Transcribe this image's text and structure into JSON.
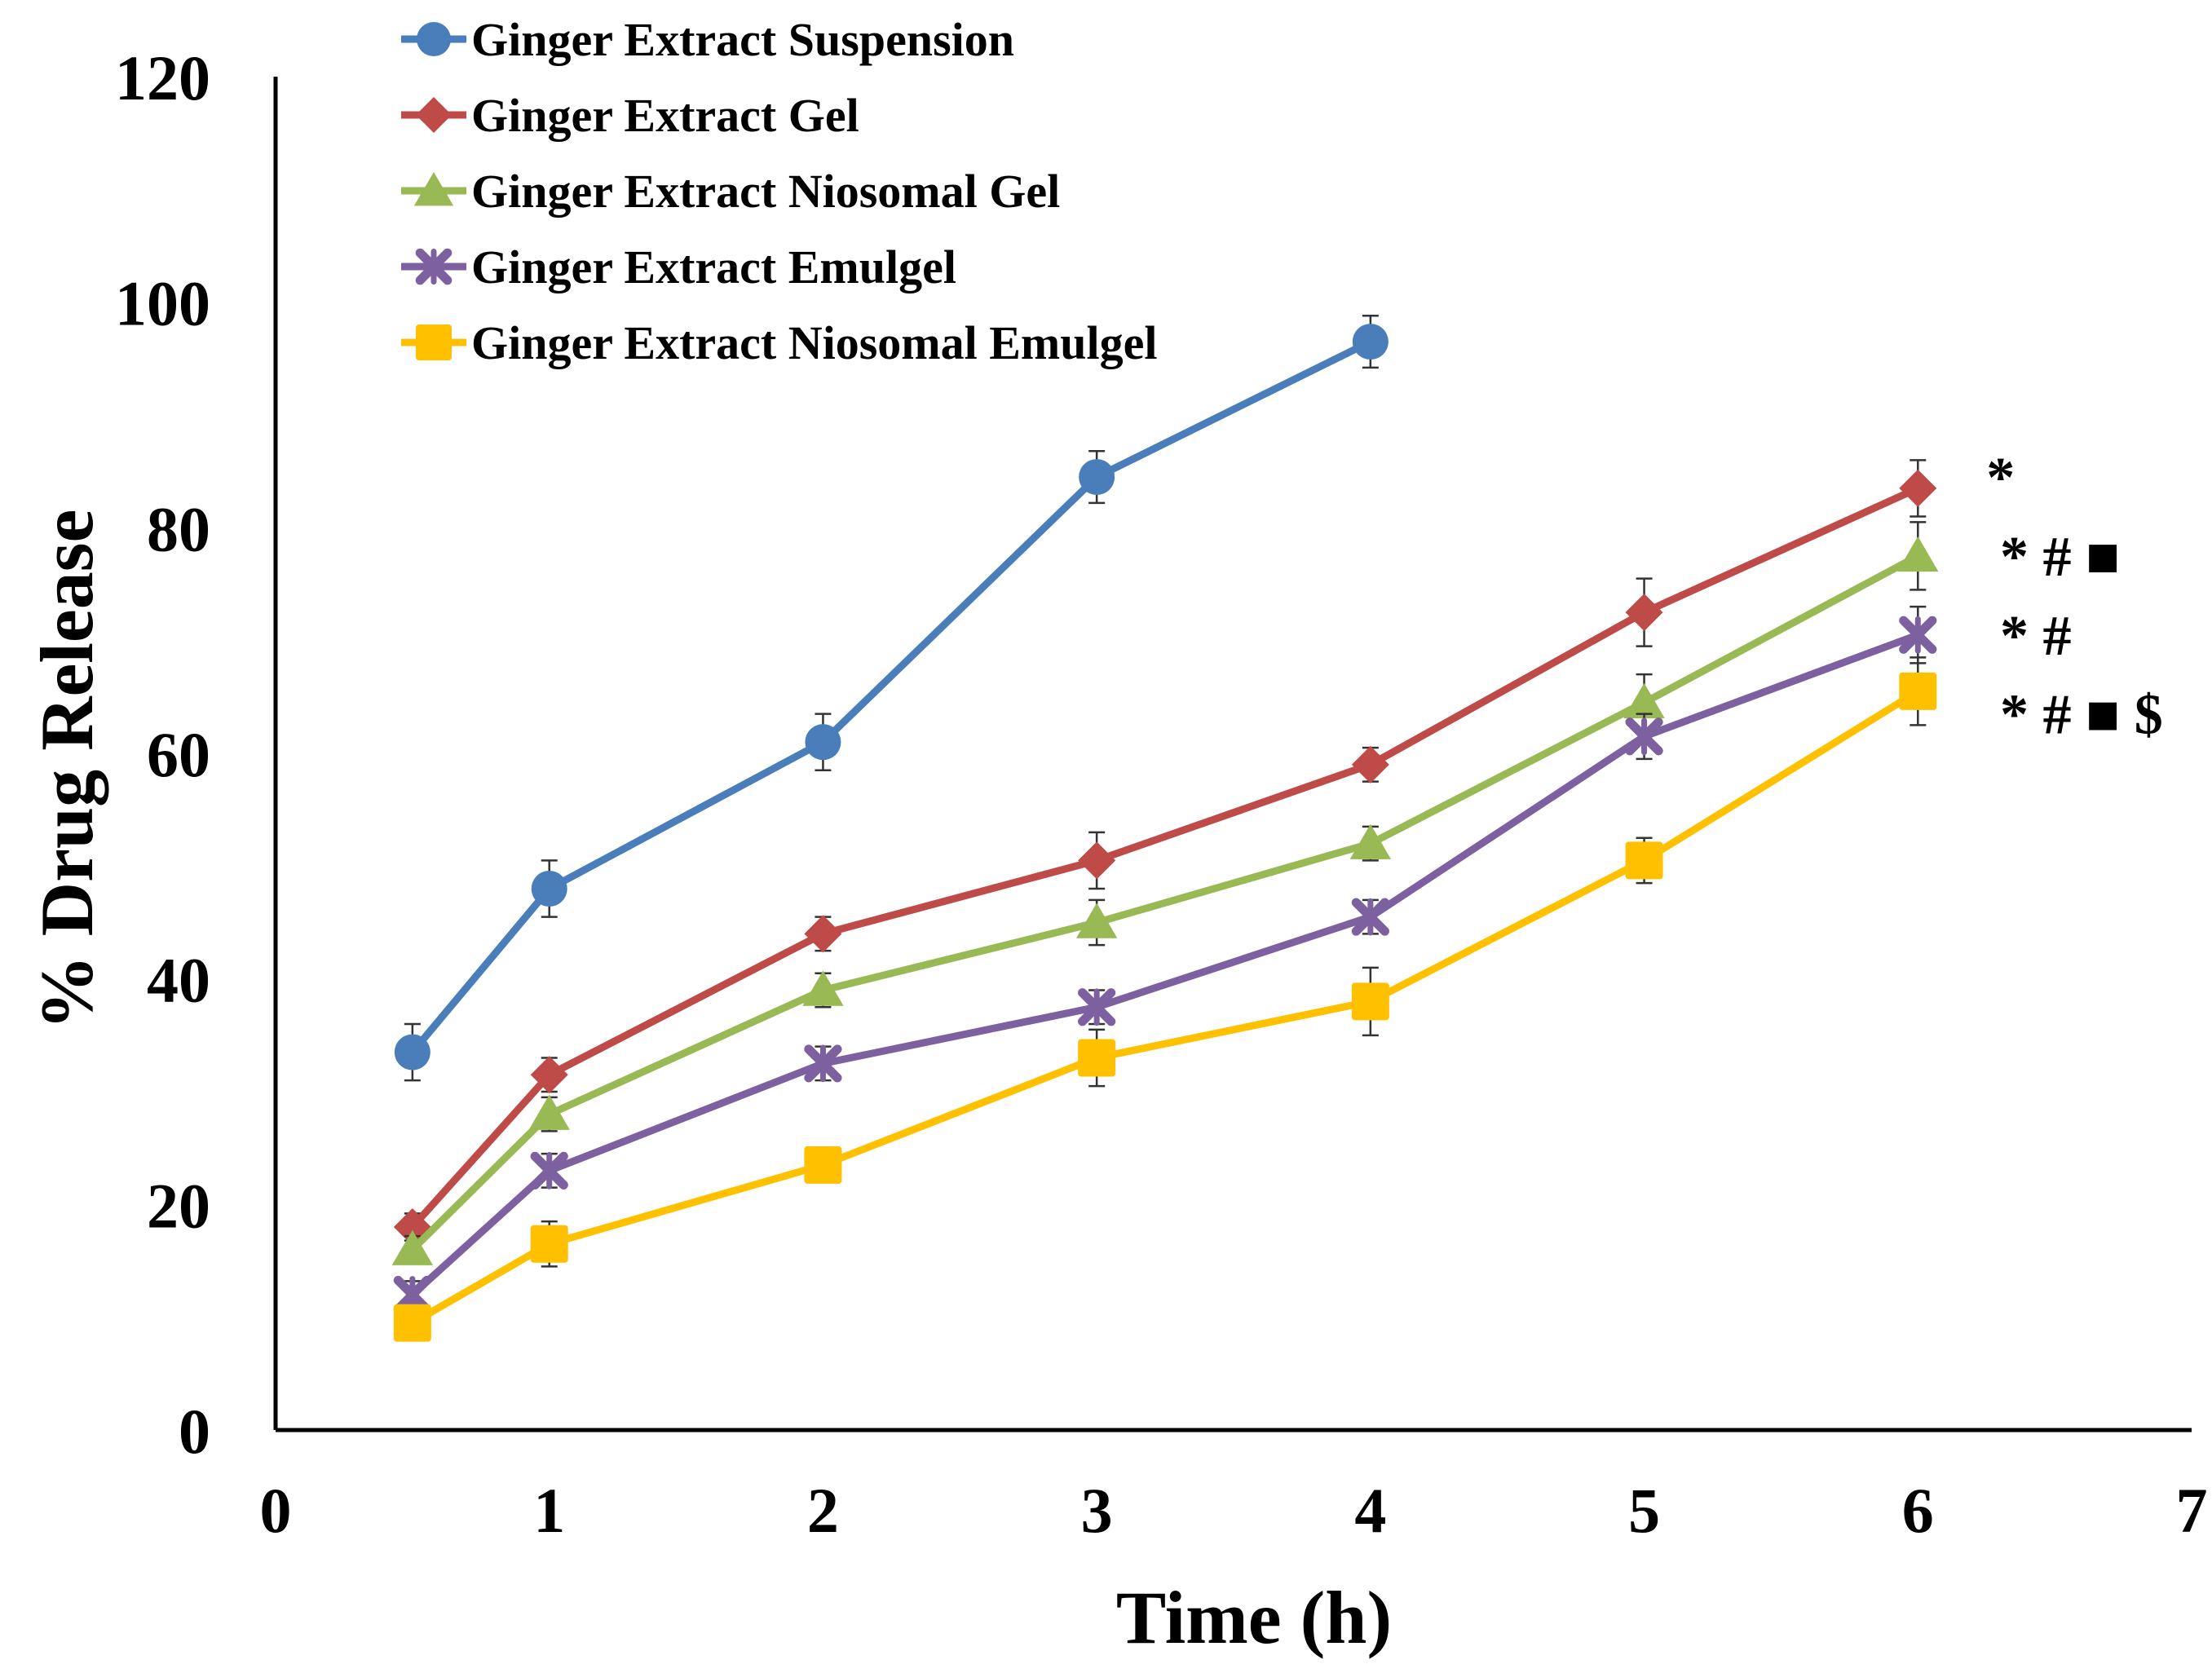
{
  "chart_data": {
    "type": "line",
    "title": "",
    "xlabel": "Time (h)",
    "ylabel": "% Drug Release",
    "xlim": [
      0,
      7
    ],
    "ylim": [
      0,
      120
    ],
    "xticks": [
      "0",
      "1",
      "2",
      "3",
      "4",
      "5",
      "6",
      "7"
    ],
    "yticks": [
      "0",
      "20",
      "40",
      "60",
      "80",
      "100",
      "120"
    ],
    "grid": false,
    "legend_position": "top-left",
    "series": [
      {
        "name": "Ginger Extract Suspension",
        "color": "#4a7ebb",
        "marker": "circle",
        "x": [
          0.5,
          1,
          2,
          3,
          4
        ],
        "values": [
          33.5,
          48,
          61,
          84.5,
          96.5
        ],
        "errors": [
          2.5,
          2.5,
          2.5,
          2.3,
          2.3
        ]
      },
      {
        "name": "Ginger Extract Gel",
        "color": "#be4b48",
        "marker": "diamond",
        "x": [
          0.5,
          1,
          2,
          3,
          4,
          5,
          6
        ],
        "values": [
          18,
          31.5,
          44,
          50.5,
          59,
          72.5,
          83.5
        ],
        "errors": [
          1.2,
          1.5,
          1.5,
          2.5,
          1.5,
          3,
          2.5
        ]
      },
      {
        "name": "Ginger Extract Niosomal Gel",
        "color": "#98b954",
        "marker": "triangle",
        "x": [
          0.5,
          1,
          2,
          3,
          4,
          5,
          6
        ],
        "values": [
          16,
          28,
          39,
          45,
          52,
          64.5,
          77.5
        ],
        "errors": [
          1.2,
          1.5,
          1.5,
          2,
          1.5,
          2.5,
          3
        ]
      },
      {
        "name": "Ginger Extract Emulgel",
        "color": "#7d60a0",
        "marker": "star",
        "x": [
          0.5,
          1,
          2,
          3,
          4,
          5,
          6
        ],
        "values": [
          12,
          23,
          32.5,
          37.5,
          45.5,
          61.5,
          70.5
        ],
        "errors": [
          1.2,
          1.5,
          1.5,
          1.5,
          1.5,
          2,
          2.5
        ]
      },
      {
        "name": "Ginger Extract Niosomal Emulgel",
        "color": "#ffc000",
        "marker": "square",
        "x": [
          0.5,
          1,
          2,
          3,
          4,
          5,
          6
        ],
        "values": [
          9.5,
          16.5,
          23.5,
          33,
          38,
          50.5,
          65.5
        ],
        "errors": [
          1.2,
          2,
          1.5,
          2.5,
          3,
          2,
          3
        ]
      }
    ],
    "annotations": [
      {
        "text": "*",
        "x": 6.25,
        "y": 84.5
      },
      {
        "text": "* # ■",
        "x": 6.3,
        "y": 77.5
      },
      {
        "text": "* #",
        "x": 6.3,
        "y": 70.5
      },
      {
        "text": "* # ■ $",
        "x": 6.3,
        "y": 63.5
      }
    ]
  }
}
